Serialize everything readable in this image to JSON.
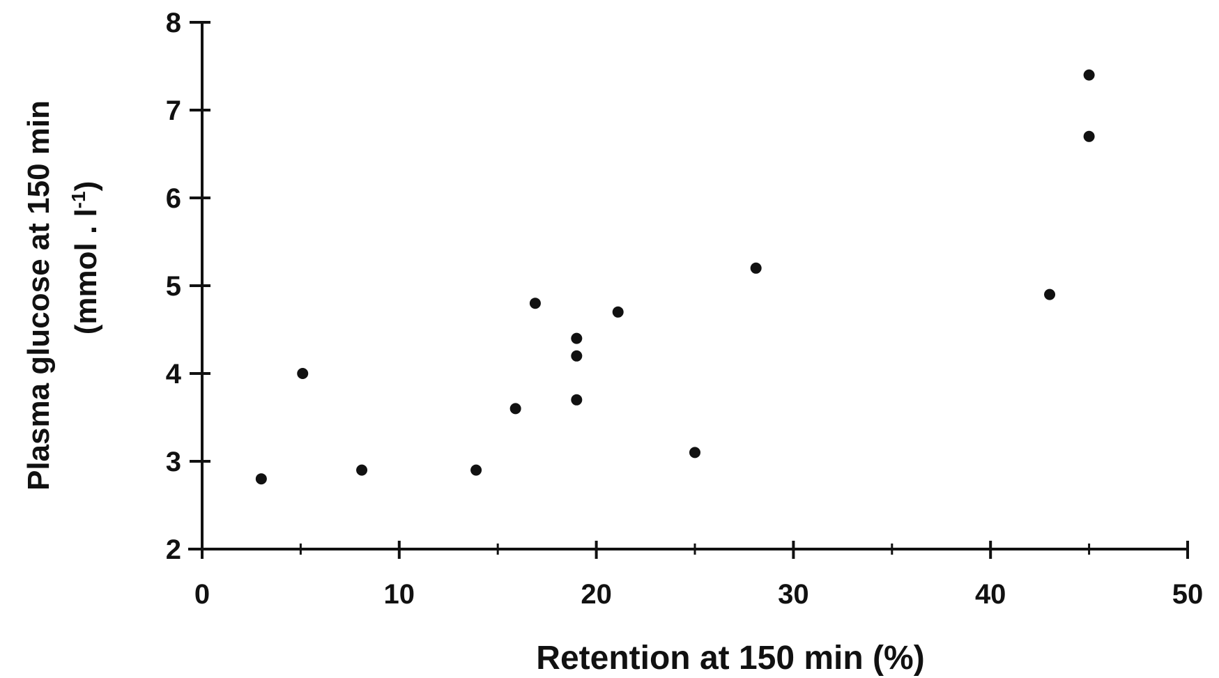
{
  "chart_data": {
    "type": "scatter",
    "xlabel": "Retention at 150 min (%)",
    "ylabel_line1": "Plasma glucose at 150 min",
    "ylabel_line2_prefix": "(mmol . l",
    "ylabel_line2_sup": "-1",
    "ylabel_line2_suffix": ")",
    "xlim": [
      0,
      50
    ],
    "ylim": [
      2,
      8
    ],
    "xticks": [
      0,
      10,
      20,
      30,
      40,
      50
    ],
    "yticks": [
      2,
      3,
      4,
      5,
      6,
      7,
      8
    ],
    "grid": false,
    "colors": {
      "marker": "#111111",
      "axis": "#111111"
    },
    "points": [
      {
        "x": 3.0,
        "y": 2.8
      },
      {
        "x": 5.1,
        "y": 4.0
      },
      {
        "x": 8.1,
        "y": 2.9
      },
      {
        "x": 13.9,
        "y": 2.9
      },
      {
        "x": 15.9,
        "y": 3.6
      },
      {
        "x": 16.9,
        "y": 4.8
      },
      {
        "x": 19.0,
        "y": 4.4
      },
      {
        "x": 19.0,
        "y": 4.2
      },
      {
        "x": 19.0,
        "y": 3.7
      },
      {
        "x": 21.1,
        "y": 4.7
      },
      {
        "x": 25.0,
        "y": 3.1
      },
      {
        "x": 28.1,
        "y": 5.2
      },
      {
        "x": 43.0,
        "y": 4.9
      },
      {
        "x": 45.0,
        "y": 7.4
      },
      {
        "x": 45.0,
        "y": 6.7
      }
    ]
  }
}
